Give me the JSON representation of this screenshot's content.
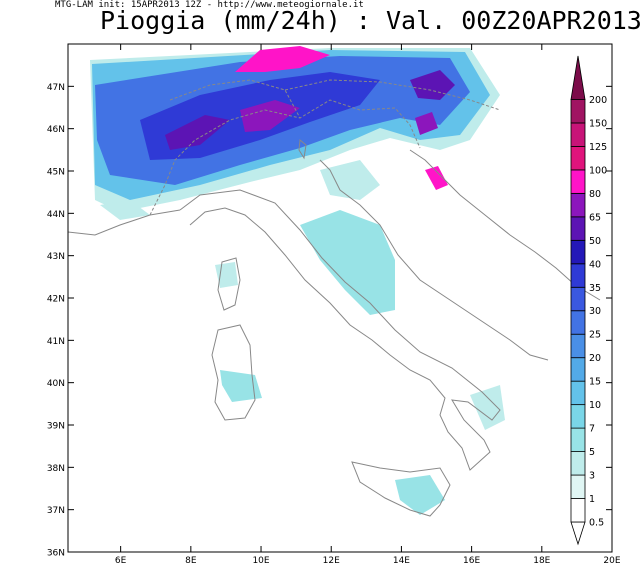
{
  "header": {
    "credit": "MTG-LAM init: 15APR2013 12Z  -  http://www.meteogiornale.it",
    "title": "Pioggia (mm/24h) : Val. 00Z20APR2013"
  },
  "map": {
    "lon_range": [
      4.5,
      20
    ],
    "lat_range": [
      36,
      48
    ],
    "lon_ticks": [
      {
        "value": 6,
        "label": "6E"
      },
      {
        "value": 8,
        "label": "8E"
      },
      {
        "value": 10,
        "label": "10E"
      },
      {
        "value": 12,
        "label": "12E"
      },
      {
        "value": 14,
        "label": "14E"
      },
      {
        "value": 16,
        "label": "16E"
      },
      {
        "value": 18,
        "label": "18E"
      },
      {
        "value": 20,
        "label": "20E"
      }
    ],
    "lat_ticks": [
      {
        "value": 36,
        "label": "36N"
      },
      {
        "value": 37,
        "label": "37N"
      },
      {
        "value": 38,
        "label": "38N"
      },
      {
        "value": 39,
        "label": "39N"
      },
      {
        "value": 40,
        "label": "40N"
      },
      {
        "value": 41,
        "label": "41N"
      },
      {
        "value": 42,
        "label": "42N"
      },
      {
        "value": 43,
        "label": "43N"
      },
      {
        "value": 44,
        "label": "44N"
      },
      {
        "value": 45,
        "label": "45N"
      },
      {
        "value": 46,
        "label": "46N"
      },
      {
        "value": 47,
        "label": "47N"
      }
    ],
    "coast_color": "#888888"
  },
  "legend": {
    "levels": [
      {
        "label": "0.5",
        "color": "#ffffff"
      },
      {
        "label": "1",
        "color": "#e0f6f4"
      },
      {
        "label": "3",
        "color": "#bfeceb"
      },
      {
        "label": "5",
        "color": "#98e3e6"
      },
      {
        "label": "7",
        "color": "#7ad6e8"
      },
      {
        "label": "10",
        "color": "#63c2ea"
      },
      {
        "label": "15",
        "color": "#53aae8"
      },
      {
        "label": "20",
        "color": "#4a8fe6"
      },
      {
        "label": "25",
        "color": "#4273e4"
      },
      {
        "label": "30",
        "color": "#3a58e0"
      },
      {
        "label": "35",
        "color": "#2f3ad6"
      },
      {
        "label": "40",
        "color": "#2418b8"
      },
      {
        "label": "50",
        "color": "#5c14b4"
      },
      {
        "label": "65",
        "color": "#8c16bc"
      },
      {
        "label": "80",
        "color": "#ff14c8"
      },
      {
        "label": "100",
        "color": "#e0147c"
      },
      {
        "label": "125",
        "color": "#c81478"
      },
      {
        "label": "150",
        "color": "#a01462"
      },
      {
        "label": "200",
        "color": "#7c0c4a"
      }
    ]
  }
}
